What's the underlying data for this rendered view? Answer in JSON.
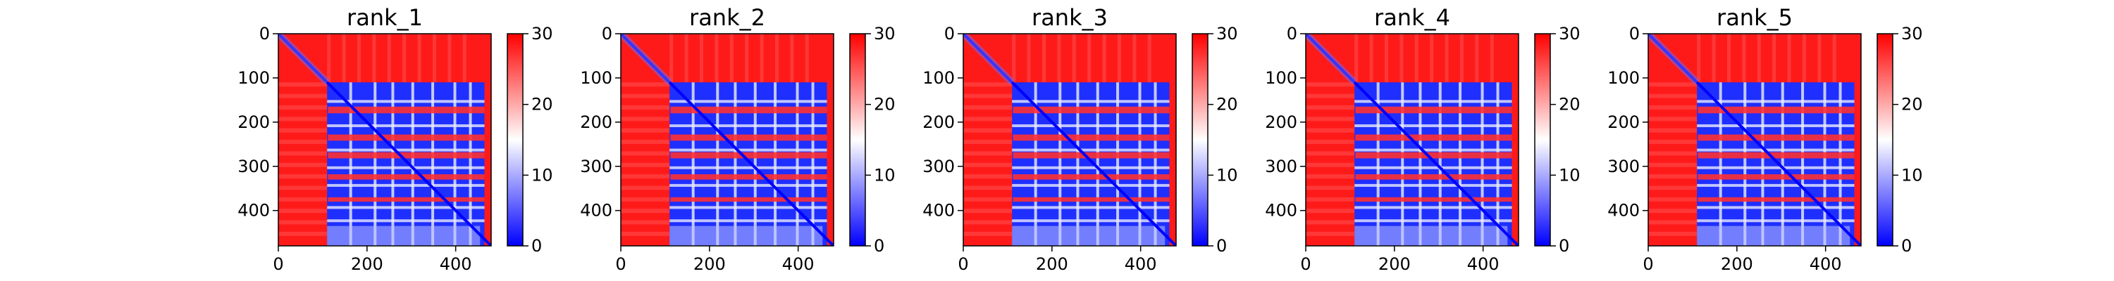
{
  "chart_data": [
    {
      "type": "heatmap",
      "title": "rank_1",
      "xlabel": "",
      "ylabel": "",
      "x_range": [
        0,
        480
      ],
      "y_range": [
        480,
        0
      ],
      "x_ticks": [
        0,
        200,
        400
      ],
      "y_ticks": [
        0,
        100,
        200,
        300,
        400
      ],
      "colorbar": {
        "range": [
          0,
          30
        ],
        "ticks": [
          0,
          10,
          20,
          30
        ],
        "colormap": "bwr"
      },
      "blocks": {
        "n_terminal_disordered_end": 110,
        "c_terminal_disordered_start": 455
      }
    },
    {
      "type": "heatmap",
      "title": "rank_2",
      "xlabel": "",
      "ylabel": "",
      "x_range": [
        0,
        480
      ],
      "y_range": [
        480,
        0
      ],
      "x_ticks": [
        0,
        200,
        400
      ],
      "y_ticks": [
        0,
        100,
        200,
        300,
        400
      ],
      "colorbar": {
        "range": [
          0,
          30
        ],
        "ticks": [
          0,
          10,
          20,
          30
        ],
        "colormap": "bwr"
      },
      "blocks": {
        "n_terminal_disordered_end": 110,
        "c_terminal_disordered_start": 455
      }
    },
    {
      "type": "heatmap",
      "title": "rank_3",
      "xlabel": "",
      "ylabel": "",
      "x_range": [
        0,
        480
      ],
      "y_range": [
        480,
        0
      ],
      "x_ticks": [
        0,
        200,
        400
      ],
      "y_ticks": [
        0,
        100,
        200,
        300,
        400
      ],
      "colorbar": {
        "range": [
          0,
          30
        ],
        "ticks": [
          0,
          10,
          20,
          30
        ],
        "colormap": "bwr"
      },
      "blocks": {
        "n_terminal_disordered_end": 110,
        "c_terminal_disordered_start": 455
      }
    },
    {
      "type": "heatmap",
      "title": "rank_4",
      "xlabel": "",
      "ylabel": "",
      "x_range": [
        0,
        480
      ],
      "y_range": [
        480,
        0
      ],
      "x_ticks": [
        0,
        200,
        400
      ],
      "y_ticks": [
        0,
        100,
        200,
        300,
        400
      ],
      "colorbar": {
        "range": [
          0,
          30
        ],
        "ticks": [
          0,
          10,
          20,
          30
        ],
        "colormap": "bwr"
      },
      "blocks": {
        "n_terminal_disordered_end": 110,
        "c_terminal_disordered_start": 455
      }
    },
    {
      "type": "heatmap",
      "title": "rank_5",
      "xlabel": "",
      "ylabel": "",
      "x_range": [
        0,
        480
      ],
      "y_range": [
        480,
        0
      ],
      "x_ticks": [
        0,
        200,
        400
      ],
      "y_ticks": [
        0,
        100,
        200,
        300,
        400
      ],
      "colorbar": {
        "range": [
          0,
          30
        ],
        "ticks": [
          0,
          10,
          20,
          30
        ],
        "colormap": "bwr"
      },
      "blocks": {
        "n_terminal_disordered_end": 110,
        "c_terminal_disordered_start": 455
      }
    }
  ],
  "colors": {
    "low": "#0000ff",
    "mid": "#ffffff",
    "high": "#ff0000"
  }
}
